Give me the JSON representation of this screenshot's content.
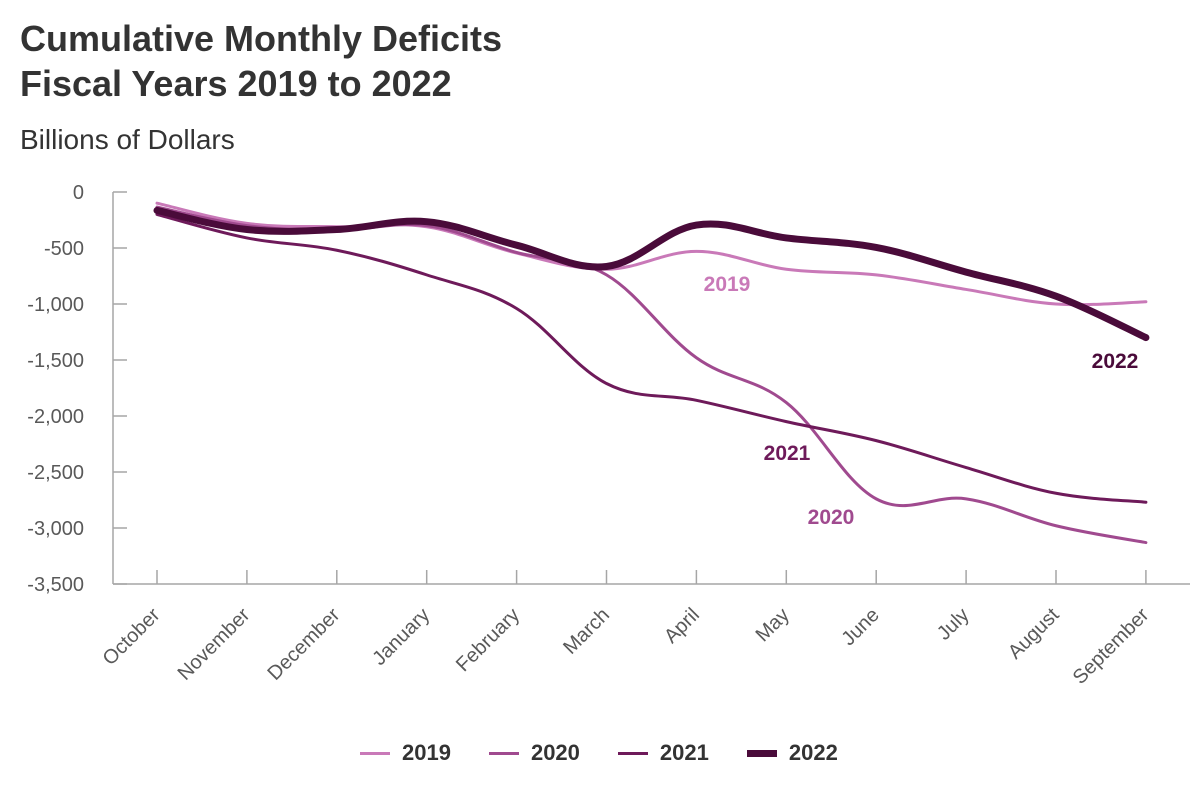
{
  "title_line1": "Cumulative Monthly Deficits",
  "title_line2": "Fiscal Years 2019 to 2022",
  "subtitle": "Billions of Dollars",
  "chart_data": {
    "type": "line",
    "title": "Cumulative Monthly Deficits Fiscal Years 2019 to 2022",
    "ylabel": "Billions of Dollars",
    "xlabel": "",
    "ylim": [
      -3500,
      0
    ],
    "yticks": [
      0,
      -500,
      -1000,
      -1500,
      -2000,
      -2500,
      -3000,
      -3500
    ],
    "ytick_labels": [
      "0",
      "-500",
      "-1,000",
      "-1,500",
      "-2,000",
      "-2,500",
      "-3,000",
      "-3,500"
    ],
    "categories": [
      "October",
      "November",
      "December",
      "January",
      "February",
      "March",
      "April",
      "May",
      "June",
      "July",
      "August",
      "September"
    ],
    "grid": false,
    "legend": "bottom",
    "series": [
      {
        "name": "2019",
        "color": "#c979b8",
        "values": [
          -100,
          -280,
          -310,
          -310,
          -545,
          -690,
          -530,
          -690,
          -740,
          -870,
          -1000,
          -980
        ]
      },
      {
        "name": "2020",
        "color": "#a04a8f",
        "values": [
          -135,
          -300,
          -340,
          -300,
          -540,
          -740,
          -1480,
          -1880,
          -2740,
          -2740,
          -2980,
          -3130
        ]
      },
      {
        "name": "2021",
        "color": "#6e1a5a",
        "values": [
          -200,
          -410,
          -520,
          -740,
          -1040,
          -1710,
          -1860,
          -2050,
          -2220,
          -2460,
          -2690,
          -2770
        ]
      },
      {
        "name": "2022",
        "color": "#4a0b3a",
        "values": [
          -165,
          -335,
          -335,
          -265,
          -475,
          -665,
          -295,
          -410,
          -495,
          -715,
          -930,
          -1300
        ]
      }
    ],
    "annotations": [
      {
        "text": "2019",
        "series": "2019"
      },
      {
        "text": "2020",
        "series": "2020"
      },
      {
        "text": "2021",
        "series": "2021"
      },
      {
        "text": "2022",
        "series": "2022"
      }
    ]
  }
}
